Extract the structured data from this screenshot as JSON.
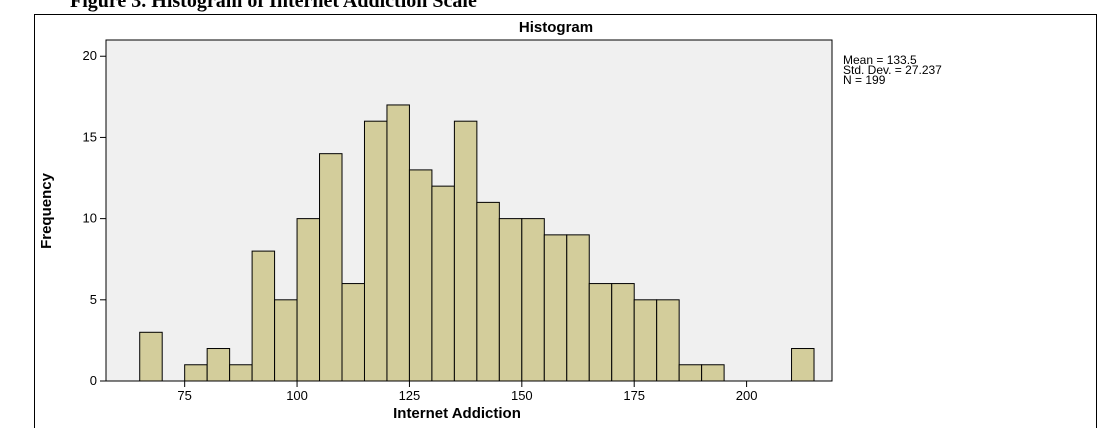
{
  "caption": "Figure 3. Histogram of Internet Addiction Scale",
  "chart_data": {
    "type": "bar",
    "title": "Histogram",
    "xlabel": "Internet Addiction",
    "ylabel": "Frequency",
    "bin_width": 5,
    "bin_starts": [
      65,
      70,
      75,
      80,
      85,
      90,
      95,
      100,
      105,
      110,
      115,
      120,
      125,
      130,
      135,
      140,
      145,
      150,
      155,
      160,
      165,
      170,
      175,
      180,
      185,
      190,
      195,
      200,
      205,
      210
    ],
    "values": [
      3,
      0,
      1,
      2,
      1,
      8,
      5,
      10,
      14,
      6,
      16,
      17,
      13,
      12,
      16,
      11,
      10,
      10,
      9,
      9,
      6,
      6,
      5,
      5,
      1,
      1,
      0,
      0,
      0,
      2
    ],
    "xlim": [
      57.5,
      219
    ],
    "ylim": [
      0,
      21
    ],
    "xticks": [
      75,
      100,
      125,
      150,
      175,
      200
    ],
    "yticks": [
      0,
      5,
      10,
      15,
      20
    ],
    "bar_color": "#d3cd9b",
    "plot_background": "#f0f0f0",
    "grid": false,
    "legend_position": "top-right",
    "stats": [
      "Mean = 133.5",
      "Std. Dev. = 27.237",
      "N = 199"
    ]
  }
}
